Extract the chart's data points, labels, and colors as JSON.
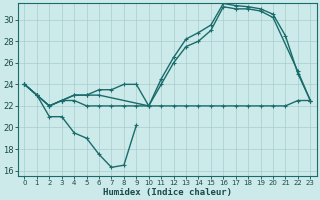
{
  "xlabel": "Humidex (Indice chaleur)",
  "bg_color": "#cceaea",
  "grid_color": "#aacccc",
  "line_color": "#1a6b6b",
  "xlim": [
    -0.5,
    23.5
  ],
  "ylim": [
    15.5,
    31.5
  ],
  "xticks": [
    0,
    1,
    2,
    3,
    4,
    5,
    6,
    7,
    8,
    9,
    10,
    11,
    12,
    13,
    14,
    15,
    16,
    17,
    18,
    19,
    20,
    21,
    22,
    23
  ],
  "yticks": [
    16,
    18,
    20,
    22,
    24,
    26,
    28,
    30
  ],
  "series_min": {
    "comment": "flat lower line - slowly rising from ~22",
    "x": [
      0,
      1,
      2,
      3,
      4,
      5,
      6,
      7,
      8,
      9,
      10,
      11,
      12,
      13,
      14,
      15,
      16,
      17,
      18,
      19,
      20,
      21,
      22,
      23
    ],
    "y": [
      24,
      23,
      22,
      22.5,
      22.5,
      22,
      22,
      22,
      22,
      22,
      22,
      22,
      22,
      22,
      22,
      22,
      22,
      22,
      22,
      22,
      22,
      22,
      22.5,
      22.5
    ]
  },
  "series_bottom": {
    "comment": "dipping curve going down then back up",
    "x": [
      0,
      1,
      2,
      3,
      4,
      5,
      6,
      7,
      8,
      9
    ],
    "y": [
      24,
      23,
      21,
      21,
      19.5,
      19,
      17.5,
      16.3,
      16.5,
      20.2
    ]
  },
  "series_upper1": {
    "comment": "upper rising curve, peak ~31.5 at x=16",
    "x": [
      0,
      1,
      2,
      3,
      4,
      5,
      6,
      7,
      8,
      9,
      10,
      11,
      12,
      13,
      14,
      15,
      16,
      17,
      18,
      19,
      20,
      21,
      22,
      23
    ],
    "y": [
      24,
      23,
      22,
      22.5,
      23,
      23,
      23.5,
      23.5,
      24,
      24,
      22,
      24.5,
      26.5,
      28.2,
      28.8,
      29.5,
      31.5,
      31.3,
      31.2,
      31,
      30.5,
      28.5,
      25,
      22.5
    ]
  },
  "series_upper2": {
    "comment": "second upper curve slightly below",
    "x": [
      0,
      1,
      2,
      3,
      4,
      5,
      6,
      10,
      11,
      12,
      13,
      14,
      15,
      16,
      17,
      18,
      19,
      20,
      22,
      23
    ],
    "y": [
      24,
      23,
      22,
      22.5,
      23,
      23,
      23,
      22,
      24,
      26,
      27.5,
      28,
      29,
      31.2,
      31,
      31,
      30.8,
      30.2,
      25.2,
      22.5
    ]
  }
}
